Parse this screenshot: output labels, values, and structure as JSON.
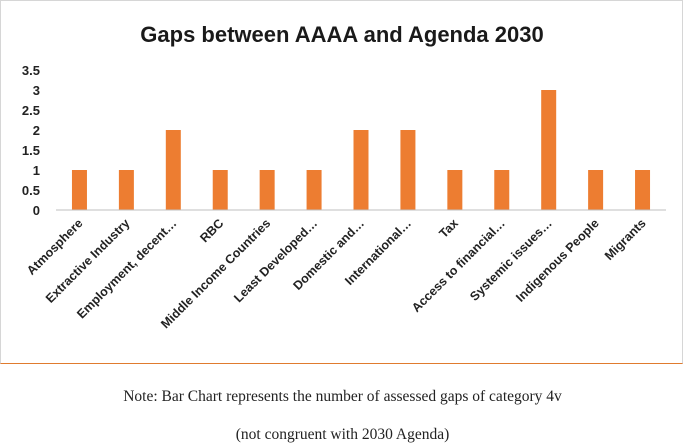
{
  "chart_data": {
    "type": "bar",
    "title": "Gaps between AAAA and Agenda 2030",
    "xlabel": "",
    "ylabel": "",
    "ylim": [
      0,
      3.5
    ],
    "yticks": [
      "0",
      "0.5",
      "1",
      "1.5",
      "2",
      "2.5",
      "3",
      "3.5"
    ],
    "categories": [
      "Atmosphere",
      "Extractive Industry",
      "Employment, decent…",
      "RBC",
      "Middle Income Countries",
      "Least Developed…",
      "Domestic and…",
      "International…",
      "Tax",
      "Access to financial…",
      "Systemic issues…",
      "Indigenous People",
      "Migrants"
    ],
    "values": [
      1,
      1,
      2,
      1,
      1,
      1,
      2,
      2,
      1,
      1,
      3,
      1,
      1
    ],
    "bar_color": "#ed7d31",
    "gridlines": false
  },
  "note": {
    "line1": "Note:  Bar Chart represents the number of assessed gaps of category 4v",
    "line2": "(not congruent with 2030 Agenda)"
  }
}
